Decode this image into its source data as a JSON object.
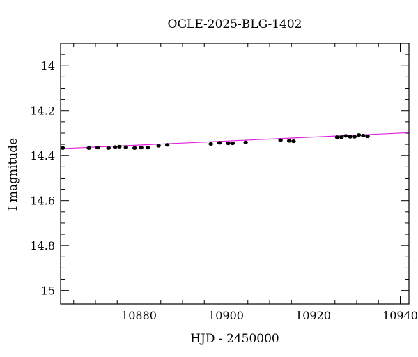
{
  "chart_data": {
    "type": "scatter",
    "title": "OGLE-2025-BLG-1402",
    "xlabel": "HJD - 2450000",
    "ylabel": "I magnitude",
    "xlim": [
      10862,
      10942
    ],
    "ylim": [
      15.06,
      13.9
    ],
    "y_inverted": true,
    "grid": false,
    "x_ticks": [
      10880,
      10900,
      10920,
      10940
    ],
    "y_ticks": [
      14,
      14.2,
      14.4,
      14.6,
      14.8,
      15
    ],
    "x_tick_labels": [
      "10880",
      "10900",
      "10920",
      "10940"
    ],
    "y_tick_labels": [
      "14",
      "14.2",
      "14.4",
      "14.6",
      "14.8",
      "15"
    ],
    "colors": {
      "points": "#000000",
      "model": "#e020e0",
      "frame": "#000000"
    },
    "model_line": {
      "x": [
        10862,
        10942
      ],
      "y": [
        14.369,
        14.298
      ]
    },
    "series": [
      {
        "x": [
          10862.5,
          10868.5,
          10870.5,
          10873.0,
          10874.5,
          10875.5,
          10877.0,
          10879.0,
          10880.5,
          10882.0,
          10884.5,
          10886.5,
          10896.5,
          10898.5,
          10900.5,
          10901.5,
          10904.5,
          10912.5,
          10914.5,
          10915.5,
          10925.5,
          10926.5,
          10927.5,
          10928.5,
          10929.5,
          10930.5,
          10931.5,
          10932.5
        ],
        "y": [
          14.366,
          14.366,
          14.364,
          14.366,
          14.362,
          14.36,
          14.363,
          14.366,
          14.364,
          14.364,
          14.356,
          14.352,
          14.348,
          14.343,
          14.345,
          14.345,
          14.341,
          14.331,
          14.334,
          14.336,
          14.318,
          14.318,
          14.312,
          14.316,
          14.316,
          14.308,
          14.311,
          14.314
        ]
      }
    ]
  }
}
